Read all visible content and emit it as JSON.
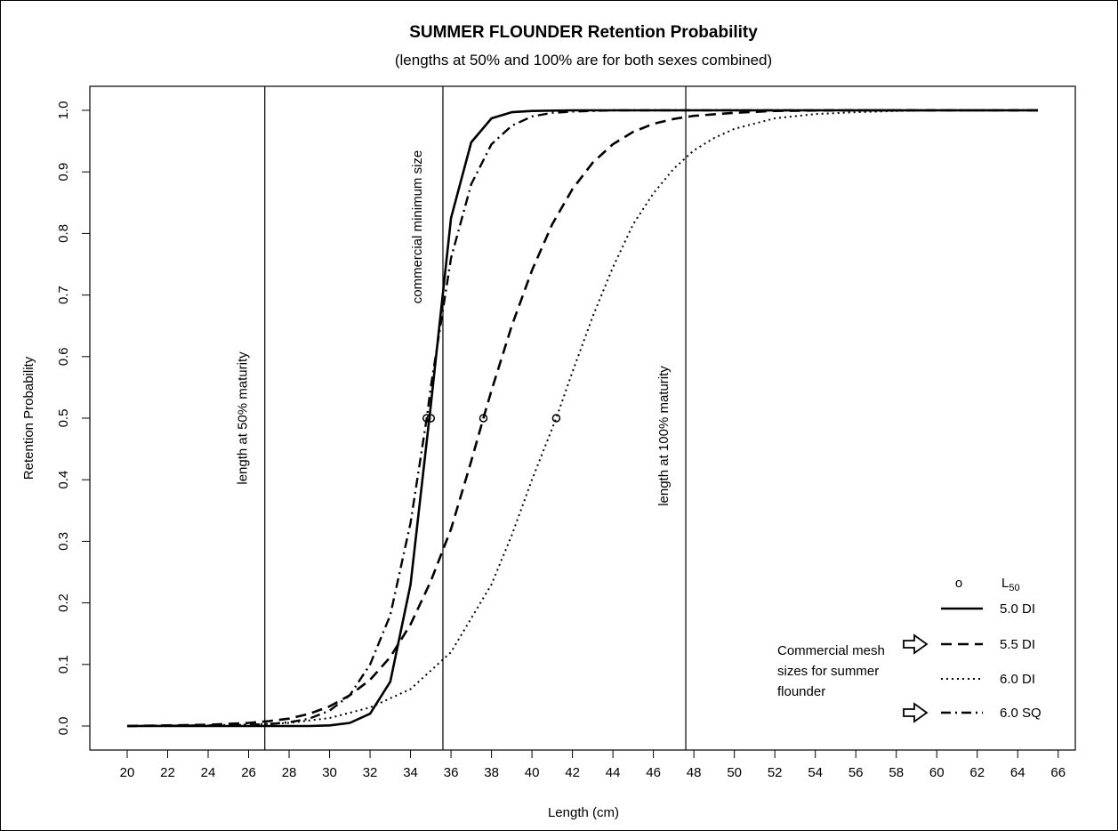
{
  "chart_data": {
    "type": "line",
    "title": "SUMMER FLOUNDER Retention Probability",
    "subtitle": "(lengths at 50% and 100% are for both sexes combined)",
    "xlabel": "Length (cm)",
    "ylabel": "Retention Probability",
    "xlim": [
      20,
      66
    ],
    "ylim": [
      0,
      1
    ],
    "x_ticks": [
      "20",
      "22",
      "24",
      "26",
      "28",
      "30",
      "32",
      "34",
      "36",
      "38",
      "40",
      "42",
      "44",
      "46",
      "48",
      "50",
      "52",
      "54",
      "56",
      "58",
      "60",
      "62",
      "64",
      "66"
    ],
    "y_ticks": [
      "0.0",
      "0.1",
      "0.2",
      "0.3",
      "0.4",
      "0.5",
      "0.6",
      "0.7",
      "0.8",
      "0.9",
      "1.0"
    ],
    "grid": false,
    "series": [
      {
        "name": "5.0 DI",
        "line_style": "solid",
        "x": [
          20,
          22,
          24,
          26,
          28,
          29,
          30,
          31,
          32,
          33,
          34,
          35,
          36,
          37,
          38,
          39,
          40,
          42,
          45,
          50,
          55,
          60,
          65
        ],
        "values": [
          0,
          0,
          0,
          0,
          0,
          0,
          0.001,
          0.005,
          0.02,
          0.072,
          0.23,
          0.52,
          0.825,
          0.948,
          0.987,
          0.997,
          0.999,
          1,
          1,
          1,
          1,
          1,
          1
        ]
      },
      {
        "name": "5.5 DI",
        "line_style": "dashed",
        "x": [
          20,
          24,
          26,
          27,
          28,
          29,
          30,
          31,
          32,
          33,
          34,
          35,
          36,
          37,
          37.6,
          38,
          39,
          40,
          41,
          42,
          43,
          44,
          45,
          46,
          47,
          48,
          50,
          52,
          55,
          60,
          65
        ],
        "values": [
          0,
          0.002,
          0.005,
          0.008,
          0.012,
          0.02,
          0.032,
          0.05,
          0.075,
          0.112,
          0.165,
          0.235,
          0.32,
          0.43,
          0.5,
          0.545,
          0.65,
          0.74,
          0.815,
          0.872,
          0.915,
          0.945,
          0.965,
          0.978,
          0.986,
          0.991,
          0.996,
          0.999,
          1,
          1,
          1
        ]
      },
      {
        "name": "6.0 DI",
        "line_style": "dotted",
        "x": [
          20,
          25,
          28,
          30,
          32,
          34,
          36,
          38,
          39,
          40,
          41.2,
          42,
          43,
          44,
          45,
          46,
          47,
          48,
          49,
          50,
          52,
          54,
          56,
          58,
          60,
          62,
          65
        ],
        "values": [
          0,
          0.001,
          0.005,
          0.013,
          0.03,
          0.06,
          0.12,
          0.23,
          0.31,
          0.4,
          0.5,
          0.575,
          0.665,
          0.745,
          0.815,
          0.865,
          0.905,
          0.935,
          0.955,
          0.97,
          0.987,
          0.994,
          0.997,
          0.999,
          1,
          1,
          1
        ]
      },
      {
        "name": "6.0 SQ",
        "line_style": "dashdot",
        "x": [
          20,
          24,
          26,
          27,
          28,
          29,
          30,
          31,
          32,
          33,
          34,
          34.8,
          35,
          36,
          37,
          38,
          39,
          40,
          41,
          42,
          44,
          46,
          50,
          55,
          60,
          65
        ],
        "values": [
          0,
          0.001,
          0.002,
          0.003,
          0.006,
          0.012,
          0.025,
          0.05,
          0.1,
          0.18,
          0.33,
          0.5,
          0.55,
          0.76,
          0.88,
          0.945,
          0.975,
          0.99,
          0.996,
          0.998,
          1,
          1,
          1,
          1,
          1,
          1
        ]
      }
    ],
    "l50_points": [
      {
        "x": 34.8,
        "y": 0.5
      },
      {
        "x": 35.0,
        "y": 0.5
      },
      {
        "x": 37.6,
        "y": 0.5
      },
      {
        "x": 41.2,
        "y": 0.5
      }
    ],
    "vertical_lines": [
      {
        "x": 26.8,
        "label": "length at 50% maturity"
      },
      {
        "x": 35.6,
        "label": "commercial minimum size"
      },
      {
        "x": 47.6,
        "label": "length at 100% maturity"
      }
    ],
    "legend": {
      "position": "bottom-right",
      "marker_label": "o",
      "marker_header": "L",
      "marker_header_sub": "50",
      "entries": [
        "5.0 DI",
        "5.5 DI",
        "6.0 DI",
        "6.0 SQ"
      ],
      "arrow_icon": "right-arrow-outline-icon",
      "arrow_rows": [
        1,
        3
      ]
    },
    "annotation": {
      "lines": [
        "Commercial mesh",
        "sizes for summer",
        "flounder"
      ]
    }
  }
}
